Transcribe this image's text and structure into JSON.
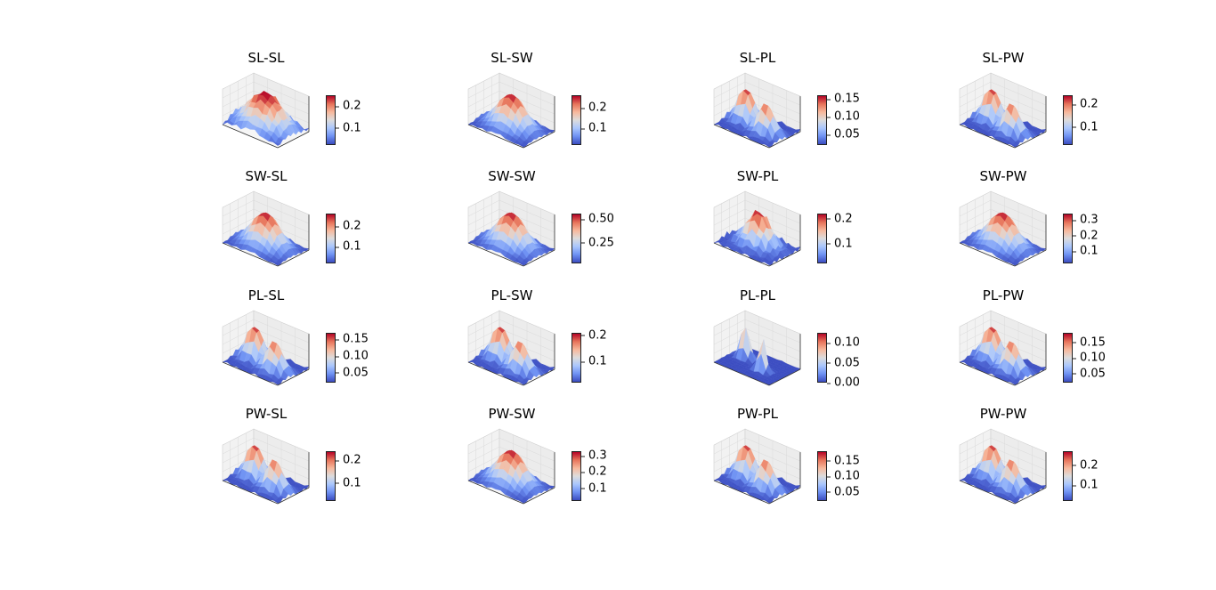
{
  "chart_data": {
    "type": "surface",
    "layout": "4x4 grid of 3D surface plots with colorbars",
    "colormap": "coolwarm",
    "axis_tick_labels": "hidden",
    "subplots": [
      {
        "title": "SL-SL",
        "shape": "plateau",
        "peak": 0.25,
        "min": 0.02,
        "cbar_ticks": [
          "0.1",
          "0.2"
        ],
        "cbar_tick_values": [
          0.1,
          0.2
        ],
        "cbar_range": [
          0.02,
          0.25
        ]
      },
      {
        "title": "SL-SW",
        "shape": "dome",
        "peak": 0.26,
        "min": 0.02,
        "cbar_ticks": [
          "0.1",
          "0.2"
        ],
        "cbar_tick_values": [
          0.1,
          0.2
        ],
        "cbar_range": [
          0.02,
          0.26
        ]
      },
      {
        "title": "SL-PL",
        "shape": "twin-peaks",
        "peak": 0.16,
        "min": 0.02,
        "cbar_ticks": [
          "0.05",
          "0.10",
          "0.15"
        ],
        "cbar_tick_values": [
          0.05,
          0.1,
          0.15
        ],
        "cbar_range": [
          0.02,
          0.16
        ]
      },
      {
        "title": "SL-PW",
        "shape": "twin-peaks",
        "peak": 0.24,
        "min": 0.02,
        "cbar_ticks": [
          "0.1",
          "0.2"
        ],
        "cbar_tick_values": [
          0.1,
          0.2
        ],
        "cbar_range": [
          0.02,
          0.24
        ]
      },
      {
        "title": "SW-SL",
        "shape": "dome",
        "peak": 0.26,
        "min": 0.02,
        "cbar_ticks": [
          "0.1",
          "0.2"
        ],
        "cbar_tick_values": [
          0.1,
          0.2
        ],
        "cbar_range": [
          0.02,
          0.26
        ]
      },
      {
        "title": "SW-SW",
        "shape": "dome",
        "peak": 0.56,
        "min": 0.03,
        "cbar_ticks": [
          "0.25",
          "0.50"
        ],
        "cbar_tick_values": [
          0.25,
          0.5
        ],
        "cbar_range": [
          0.03,
          0.56
        ]
      },
      {
        "title": "SW-PL",
        "shape": "dome-spiky",
        "peak": 0.22,
        "min": 0.02,
        "cbar_ticks": [
          "0.1",
          "0.2"
        ],
        "cbar_tick_values": [
          0.1,
          0.2
        ],
        "cbar_range": [
          0.02,
          0.22
        ]
      },
      {
        "title": "SW-PW",
        "shape": "dome",
        "peak": 0.34,
        "min": 0.02,
        "cbar_ticks": [
          "0.1",
          "0.2",
          "0.3"
        ],
        "cbar_tick_values": [
          0.1,
          0.2,
          0.3
        ],
        "cbar_range": [
          0.02,
          0.34
        ]
      },
      {
        "title": "PL-SL",
        "shape": "twin-peaks",
        "peak": 0.17,
        "min": 0.02,
        "cbar_ticks": [
          "0.05",
          "0.10",
          "0.15"
        ],
        "cbar_tick_values": [
          0.05,
          0.1,
          0.15
        ],
        "cbar_range": [
          0.02,
          0.17
        ]
      },
      {
        "title": "PL-SW",
        "shape": "twin-peaks",
        "peak": 0.21,
        "min": 0.02,
        "cbar_ticks": [
          "0.1",
          "0.2"
        ],
        "cbar_tick_values": [
          0.1,
          0.2
        ],
        "cbar_range": [
          0.02,
          0.21
        ]
      },
      {
        "title": "PL-PL",
        "shape": "twin-spikes",
        "peak": 0.125,
        "min": 0.0,
        "cbar_ticks": [
          "0.00",
          "0.05",
          "0.10"
        ],
        "cbar_tick_values": [
          0.0,
          0.05,
          0.1
        ],
        "cbar_range": [
          0.0,
          0.125
        ]
      },
      {
        "title": "PL-PW",
        "shape": "twin-peaks",
        "peak": 0.18,
        "min": 0.02,
        "cbar_ticks": [
          "0.05",
          "0.10",
          "0.15"
        ],
        "cbar_tick_values": [
          0.05,
          0.1,
          0.15
        ],
        "cbar_range": [
          0.02,
          0.18
        ]
      },
      {
        "title": "PW-SL",
        "shape": "twin-peaks",
        "peak": 0.24,
        "min": 0.02,
        "cbar_ticks": [
          "0.1",
          "0.2"
        ],
        "cbar_tick_values": [
          0.1,
          0.2
        ],
        "cbar_range": [
          0.02,
          0.24
        ]
      },
      {
        "title": "PW-SW",
        "shape": "dome",
        "peak": 0.33,
        "min": 0.02,
        "cbar_ticks": [
          "0.1",
          "0.2",
          "0.3"
        ],
        "cbar_tick_values": [
          0.1,
          0.2,
          0.3
        ],
        "cbar_range": [
          0.02,
          0.33
        ]
      },
      {
        "title": "PW-PL",
        "shape": "twin-peaks",
        "peak": 0.18,
        "min": 0.02,
        "cbar_ticks": [
          "0.05",
          "0.10",
          "0.15"
        ],
        "cbar_tick_values": [
          0.05,
          0.1,
          0.15
        ],
        "cbar_range": [
          0.02,
          0.18
        ]
      },
      {
        "title": "PW-PW",
        "shape": "twin-peaks",
        "peak": 0.27,
        "min": 0.02,
        "cbar_ticks": [
          "0.1",
          "0.2"
        ],
        "cbar_tick_values": [
          0.1,
          0.2
        ],
        "cbar_range": [
          0.02,
          0.27
        ]
      }
    ]
  }
}
